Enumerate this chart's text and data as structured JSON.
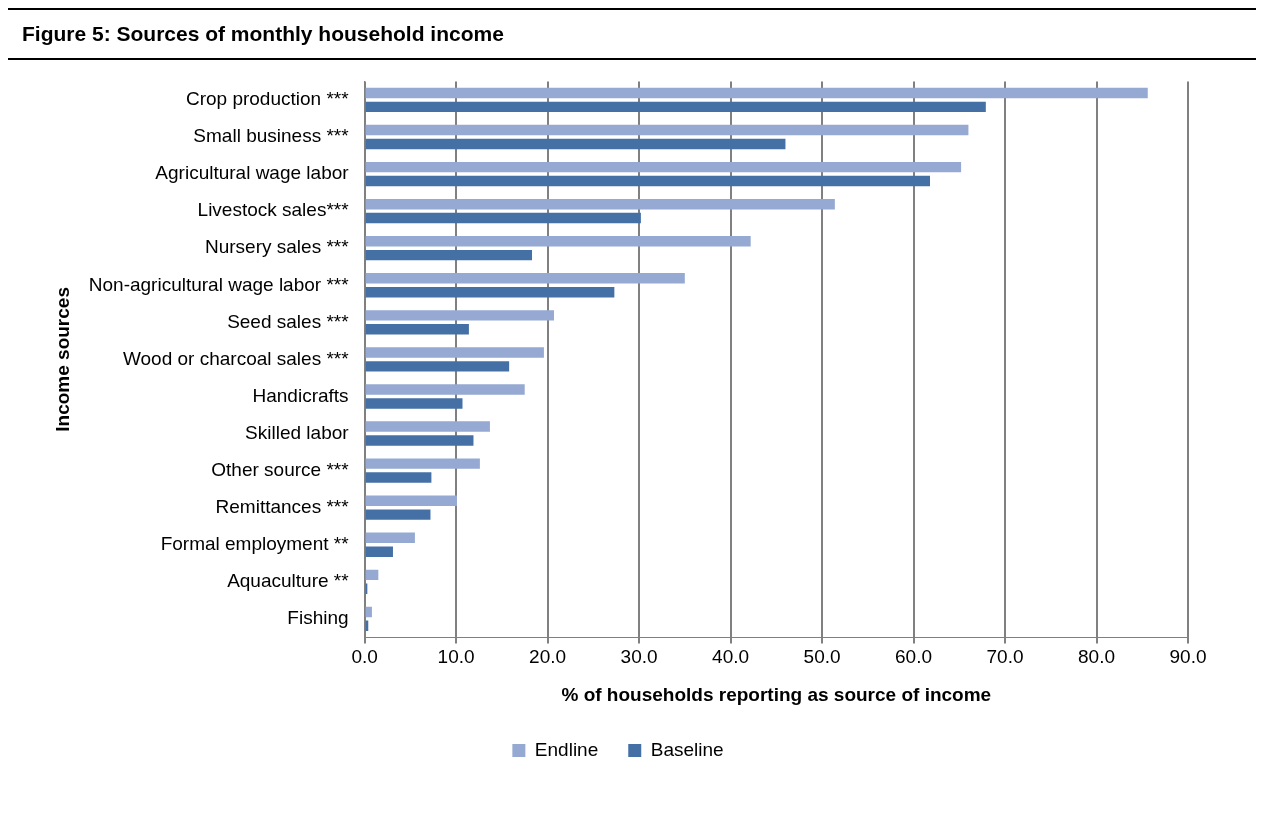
{
  "chart_data": {
    "type": "bar",
    "orientation": "horizontal",
    "title": "Figure 5: Sources of monthly household income",
    "xlabel": "% of households reporting as source of income",
    "ylabel": "Income sources",
    "categories": [
      "Crop production ***",
      "Small business ***",
      "Agricultural wage labor",
      "Livestock sales***",
      "Nursery sales ***",
      "Non-agricultural wage labor ***",
      "Seed sales ***",
      "Wood or charcoal sales ***",
      "Handicrafts",
      "Skilled labor",
      "Other source ***",
      "Remittances ***",
      "Formal employment **",
      "Aquaculture **",
      "Fishing"
    ],
    "series": [
      {
        "name": "Endline",
        "color": "#95a9d2",
        "values": [
          85.6,
          66.0,
          65.2,
          51.4,
          42.2,
          35.0,
          20.7,
          19.6,
          17.5,
          13.7,
          12.6,
          10.1,
          5.5,
          1.5,
          0.8
        ]
      },
      {
        "name": "Baseline",
        "color": "#4470a6",
        "values": [
          67.9,
          46.0,
          61.8,
          30.2,
          18.3,
          27.3,
          11.4,
          15.8,
          10.7,
          11.9,
          7.3,
          7.2,
          3.1,
          0.3,
          0.4
        ]
      }
    ],
    "xlim": [
      0,
      90
    ],
    "xticks": [
      {
        "value": 0,
        "label": "0.0"
      },
      {
        "value": 10,
        "label": "10.0"
      },
      {
        "value": 20,
        "label": "20.0"
      },
      {
        "value": 30,
        "label": "30.0"
      },
      {
        "value": 40,
        "label": "40.0"
      },
      {
        "value": 50,
        "label": "50.0"
      },
      {
        "value": 60,
        "label": "60.0"
      },
      {
        "value": 70,
        "label": "70.0"
      },
      {
        "value": 80,
        "label": "80.0"
      },
      {
        "value": 90,
        "label": "90.0"
      }
    ],
    "grid": "x",
    "legend": "bottom"
  }
}
